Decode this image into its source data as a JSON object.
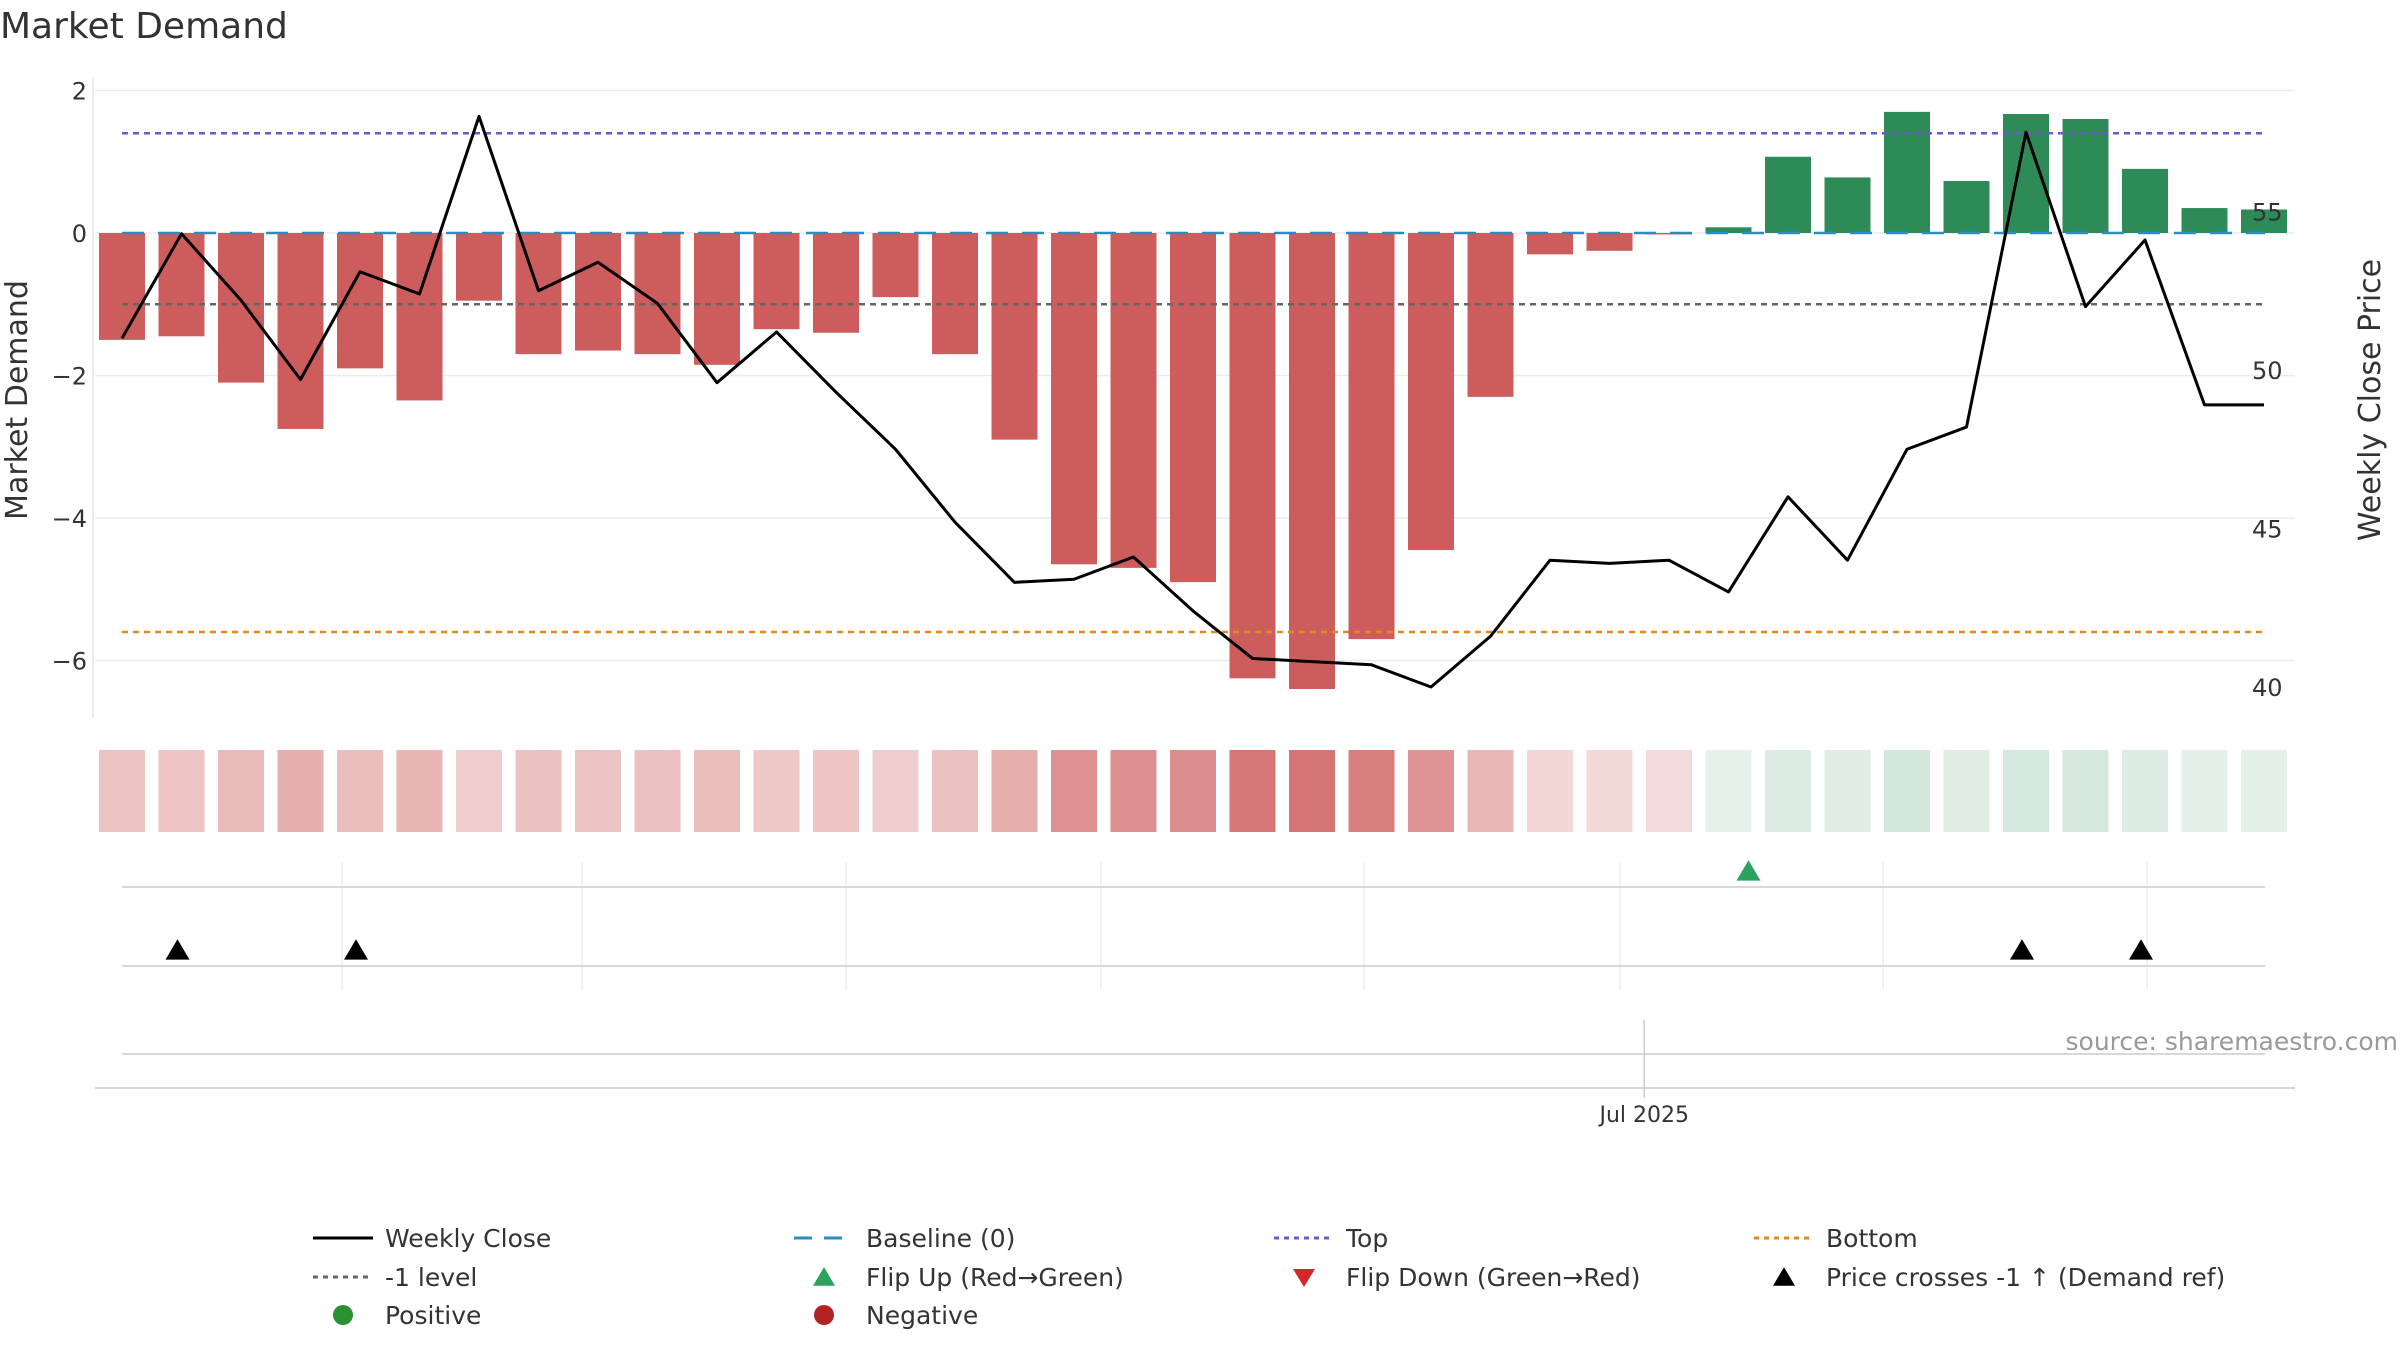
{
  "chart_data": {
    "type": "bar",
    "title": "Market Demand",
    "ylabel": "Market Demand",
    "y2label": "Weekly Close Price",
    "ylim": [
      -6.8,
      2.1
    ],
    "y2lim": [
      38.1,
      60.7
    ],
    "y_ticks": [
      2,
      0,
      -2,
      -4,
      -6
    ],
    "y_tick_labels": [
      "2",
      "0",
      "−2",
      "−4",
      "−6"
    ],
    "y2_ticks": [
      55,
      50,
      45,
      40
    ],
    "y2_tick_labels": [
      "55",
      "50",
      "45",
      "40"
    ],
    "x_tick_label": "Jul 2025",
    "x_tick_index": 25.5,
    "grid": true,
    "series": [
      {
        "name": "Demand",
        "kind": "bar",
        "values": [
          -1.5,
          -1.45,
          -2.1,
          -2.75,
          -1.9,
          -2.35,
          -0.95,
          -1.7,
          -1.65,
          -1.7,
          -1.85,
          -1.35,
          -1.4,
          -0.9,
          -1.7,
          -2.9,
          -4.65,
          -4.7,
          -4.9,
          -6.25,
          -6.4,
          -5.7,
          -4.45,
          -2.3,
          -0.3,
          -0.25,
          -0.02,
          0.08,
          1.07,
          0.78,
          1.7,
          0.73,
          1.67,
          1.6,
          0.9,
          0.35,
          0.33
        ]
      },
      {
        "name": "Weekly Close",
        "kind": "line",
        "axis": "right",
        "values": [
          51.0,
          54.3,
          52.2,
          49.7,
          53.1,
          52.4,
          58.0,
          52.5,
          53.4,
          52.1,
          49.6,
          51.2,
          49.3,
          47.5,
          45.2,
          43.3,
          43.4,
          44.1,
          42.4,
          40.9,
          40.8,
          40.7,
          40.0,
          41.6,
          44.0,
          43.9,
          44.0,
          43.0,
          46.0,
          44.0,
          47.5,
          48.2,
          57.5,
          52.0,
          54.1,
          48.9,
          48.9
        ]
      }
    ],
    "reference_lines": [
      {
        "name": "Baseline (0)",
        "value": 0,
        "color": "#2b8cbe",
        "style": "dashed"
      },
      {
        "name": "Top",
        "value": 1.4,
        "color": "#6a5acd",
        "style": "dotted"
      },
      {
        "name": "Bottom",
        "value": -5.6,
        "color": "#e08a1e",
        "style": "dotted"
      },
      {
        "name": "-1 level",
        "value": -1,
        "color": "#666666",
        "style": "dotted"
      }
    ],
    "flip_up_indices": [
      27
    ],
    "flip_down_indices": [],
    "price_cross_indices": [
      1,
      4,
      32,
      34
    ],
    "colors": {
      "positive": "#2e8b57",
      "negative": "#cd5c5c",
      "price_line": "#000000",
      "flip_up": "#2ca25f",
      "flip_down": "#d62728",
      "cross_marker": "#000000",
      "positive_dot": "#2a9132",
      "negative_dot": "#b22222"
    }
  },
  "legend": {
    "items": [
      {
        "label": "Weekly Close",
        "symbol": "line-solid",
        "color": "#000000"
      },
      {
        "label": "Baseline (0)",
        "symbol": "line-dashed",
        "color": "#2b8cbe"
      },
      {
        "label": "Top",
        "symbol": "line-dotted",
        "color": "#6a5acd"
      },
      {
        "label": "Bottom",
        "symbol": "line-dotted",
        "color": "#e08a1e"
      },
      {
        "label": "-1 level",
        "symbol": "line-dotted",
        "color": "#666666"
      },
      {
        "label": "Flip Up (Red→Green)",
        "symbol": "triangle-up",
        "color": "#2ca25f"
      },
      {
        "label": "Flip Down (Green→Red)",
        "symbol": "triangle-down",
        "color": "#d62728"
      },
      {
        "label": "Price crosses -1 ↑ (Demand ref)",
        "symbol": "triangle-up",
        "color": "#000000"
      },
      {
        "label": "Positive",
        "symbol": "dot",
        "color": "#2a9132"
      },
      {
        "label": "Negative",
        "symbol": "dot",
        "color": "#b22222"
      }
    ]
  },
  "source": "source: sharemaestro.com"
}
